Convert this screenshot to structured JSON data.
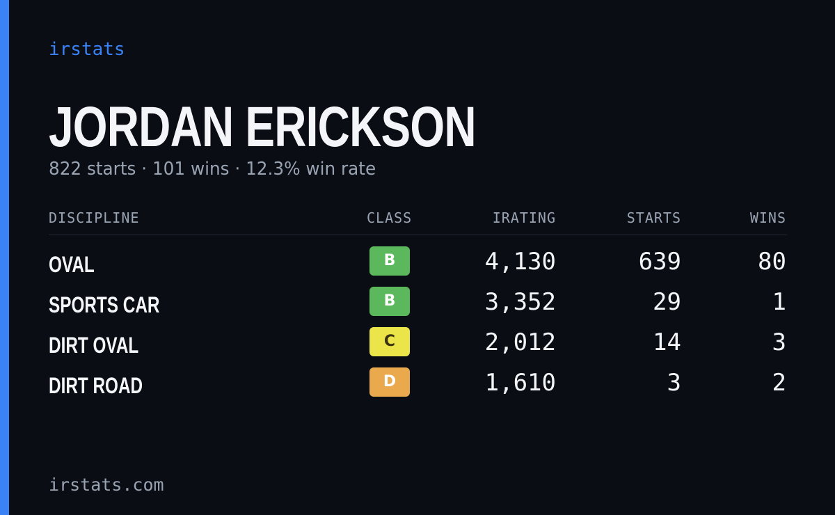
{
  "brand": "irstats",
  "driver": {
    "name": "JORDAN ERICKSON",
    "summary": "822 starts · 101 wins · 12.3% win rate"
  },
  "table": {
    "headers": {
      "discipline": "DISCIPLINE",
      "class": "CLASS",
      "irating": "IRATING",
      "starts": "STARTS",
      "wins": "WINS"
    },
    "rows": [
      {
        "discipline": "OVAL",
        "class": "B",
        "class_color": "#5cb85c",
        "class_text_color": "#ffffff",
        "irating": "4,130",
        "starts": "639",
        "wins": "80"
      },
      {
        "discipline": "SPORTS CAR",
        "class": "B",
        "class_color": "#5cb85c",
        "class_text_color": "#ffffff",
        "irating": "3,352",
        "starts": "29",
        "wins": "1"
      },
      {
        "discipline": "DIRT OVAL",
        "class": "C",
        "class_color": "#ece54a",
        "class_text_color": "#3a3410",
        "irating": "2,012",
        "starts": "14",
        "wins": "3"
      },
      {
        "discipline": "DIRT ROAD",
        "class": "D",
        "class_color": "#e9a94c",
        "class_text_color": "#ffffff",
        "irating": "1,610",
        "starts": "3",
        "wins": "2"
      }
    ]
  },
  "footer": "irstats.com",
  "colors": {
    "accent": "#3b82f6",
    "background": "#0a0d14",
    "text": "#f4f5f8",
    "muted": "#9aa3b2"
  }
}
